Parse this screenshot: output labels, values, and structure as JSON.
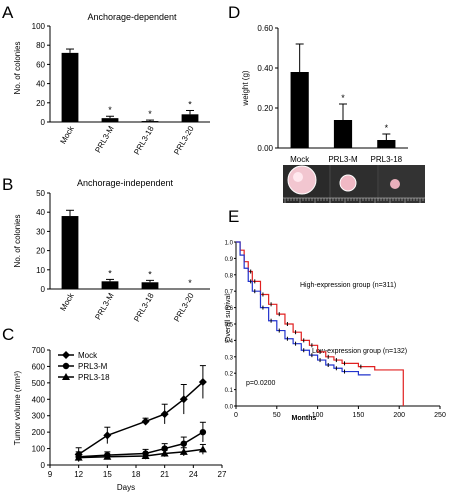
{
  "chart_data": [
    {
      "panel": "A",
      "type": "bar",
      "title": "Anchorage-dependent",
      "ylabel": "No. of colonies",
      "ylim": [
        0,
        100
      ],
      "yticks": [
        0,
        20,
        40,
        60,
        80,
        100
      ],
      "categories": [
        "Mock",
        "PRL3-M",
        "PRL3-18",
        "PRL3-20"
      ],
      "values": [
        72,
        4,
        1,
        8
      ],
      "errors": [
        4,
        2,
        1,
        4
      ],
      "annotations": [
        "",
        "*",
        "*",
        "*"
      ]
    },
    {
      "panel": "B",
      "type": "bar",
      "title": "Anchorage-independent",
      "ylabel": "No. of colonies",
      "ylim": [
        0,
        50
      ],
      "yticks": [
        0,
        10,
        20,
        30,
        40,
        50
      ],
      "categories": [
        "Mock",
        "PRL3-M",
        "PRL3-18",
        "PRL3-20"
      ],
      "values": [
        38,
        4,
        3.5,
        0
      ],
      "errors": [
        3,
        1,
        1,
        0
      ],
      "annotations": [
        "",
        "*",
        "*",
        "*"
      ]
    },
    {
      "panel": "C",
      "type": "line",
      "xlabel": "Days",
      "ylabel": "Tumor volume (mm³)",
      "xlim": [
        9,
        27
      ],
      "xticks": [
        9,
        12,
        15,
        18,
        21,
        24,
        27
      ],
      "ylim": [
        0,
        700
      ],
      "yticks": [
        0,
        100,
        200,
        300,
        400,
        500,
        600,
        700
      ],
      "legend_position": "top-left",
      "x": [
        12,
        15,
        19,
        21,
        23,
        25
      ],
      "series": [
        {
          "name": "Mock",
          "marker": "diamond",
          "values": [
            65,
            180,
            265,
            310,
            400,
            505
          ],
          "errors": [
            40,
            50,
            20,
            60,
            90,
            100
          ]
        },
        {
          "name": "PRL3-M",
          "marker": "circle",
          "values": [
            50,
            60,
            70,
            100,
            130,
            200
          ],
          "errors": [
            30,
            20,
            25,
            30,
            40,
            60
          ]
        },
        {
          "name": "PRL3-18",
          "marker": "triangle",
          "values": [
            45,
            50,
            55,
            70,
            80,
            95
          ],
          "errors": [
            20,
            15,
            20,
            20,
            25,
            30
          ]
        }
      ]
    },
    {
      "panel": "D",
      "type": "bar",
      "ylabel": "weight (g)",
      "ylim": [
        0,
        0.6
      ],
      "yticks": [
        "0.00",
        "0.20",
        "0.40",
        "0.60"
      ],
      "categories": [
        "Mock",
        "PRL3-M",
        "PRL3-18"
      ],
      "values": [
        0.38,
        0.14,
        0.04
      ],
      "errors": [
        0.14,
        0.08,
        0.03
      ],
      "annotations": [
        "",
        "*",
        "*"
      ]
    },
    {
      "panel": "E",
      "type": "line",
      "xlabel": "Months",
      "ylabel": "Overall survival",
      "xlim": [
        0,
        250
      ],
      "xticks": [
        0,
        50,
        100,
        150,
        200,
        250
      ],
      "ylim": [
        0,
        1.0
      ],
      "yticks": [
        "0.0",
        "0.1",
        "0.2",
        "0.3",
        "0.4",
        "0.5",
        "0.6",
        "0.7",
        "0.8",
        "0.9",
        "1.0"
      ],
      "annotations": [
        "p=0.0200"
      ],
      "series": [
        {
          "name": "High-expression group (n=311)",
          "color": "#e02020",
          "points": [
            [
              0,
              1.0
            ],
            [
              5,
              0.95
            ],
            [
              10,
              0.88
            ],
            [
              15,
              0.82
            ],
            [
              20,
              0.76
            ],
            [
              30,
              0.68
            ],
            [
              40,
              0.62
            ],
            [
              50,
              0.56
            ],
            [
              60,
              0.5
            ],
            [
              70,
              0.45
            ],
            [
              80,
              0.4
            ],
            [
              90,
              0.37
            ],
            [
              100,
              0.33
            ],
            [
              110,
              0.3
            ],
            [
              120,
              0.28
            ],
            [
              130,
              0.26
            ],
            [
              150,
              0.24
            ],
            [
              170,
              0.22
            ],
            [
              205,
              0.22
            ],
            [
              205,
              0.0
            ]
          ]
        },
        {
          "name": "Low-expression group (n=132)",
          "color": "#2233cc",
          "points": [
            [
              0,
              1.0
            ],
            [
              5,
              0.92
            ],
            [
              10,
              0.84
            ],
            [
              15,
              0.76
            ],
            [
              20,
              0.7
            ],
            [
              30,
              0.6
            ],
            [
              40,
              0.52
            ],
            [
              50,
              0.46
            ],
            [
              60,
              0.41
            ],
            [
              70,
              0.38
            ],
            [
              80,
              0.34
            ],
            [
              90,
              0.31
            ],
            [
              100,
              0.28
            ],
            [
              110,
              0.25
            ],
            [
              120,
              0.23
            ],
            [
              130,
              0.21
            ],
            [
              150,
              0.19
            ],
            [
              165,
              0.19
            ]
          ]
        }
      ]
    }
  ],
  "panels": {
    "A": {
      "letter": "A"
    },
    "B": {
      "letter": "B"
    },
    "C": {
      "letter": "C"
    },
    "D": {
      "letter": "D"
    },
    "E": {
      "letter": "E"
    }
  },
  "photo_strip": {
    "description": "tumor photographs"
  }
}
